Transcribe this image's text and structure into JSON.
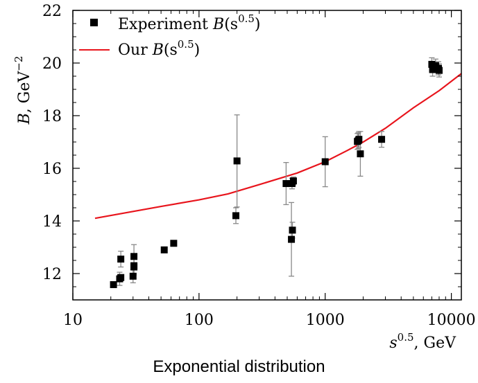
{
  "caption": "Exponential distribution",
  "chart_data": {
    "type": "scatter",
    "xscale": "log",
    "xlim": [
      10,
      12000
    ],
    "ylim": [
      11,
      22
    ],
    "xlabel_base": "s",
    "xlabel_exp": "0.5",
    "xlabel_unit": ", GeV",
    "ylabel_var": "B",
    "ylabel_unit": ", GeV",
    "ylabel_exp": "−2",
    "x_ticks": [
      10,
      100,
      1000,
      10000
    ],
    "x_tick_labels": [
      "10",
      "100",
      "1000",
      "10000"
    ],
    "y_ticks": [
      12,
      14,
      16,
      18,
      20,
      22
    ],
    "y_tick_labels": [
      "12",
      "14",
      "16",
      "18",
      "20",
      "22"
    ],
    "legend": {
      "position": "top-left",
      "experiment_label_text": "Experiment ",
      "experiment_label_var": "B",
      "experiment_label_open": "(s",
      "experiment_label_exp": "0.5",
      "experiment_label_close": ")",
      "model_label_text": "Our ",
      "model_label_var": "B",
      "model_label_open": "(s",
      "model_label_exp": "0.5",
      "model_label_close": ")"
    },
    "colors": {
      "experiment": "#000000",
      "model": "#e8141c",
      "errorbar": "#888888"
    },
    "series": [
      {
        "kind": "points_with_errorbars",
        "x": [
          21,
          23.5,
          24,
          24,
          30,
          30.5,
          30.5,
          30.5,
          53,
          63,
          196,
          200,
          490,
          540,
          546,
          550,
          560,
          1000,
          1800,
          1830,
          1850,
          1900,
          2800,
          7000,
          7100,
          7500,
          7900,
          8000
        ],
        "y": [
          11.58,
          11.8,
          11.85,
          12.55,
          11.9,
          12.25,
          12.3,
          12.65,
          12.9,
          13.15,
          14.2,
          16.28,
          15.42,
          13.3,
          15.42,
          13.65,
          15.52,
          16.25,
          17.02,
          17.05,
          17.1,
          16.55,
          17.1,
          19.95,
          19.75,
          19.9,
          19.8,
          19.72
        ],
        "yerr": [
          0,
          0.25,
          0.1,
          0.3,
          0.25,
          0.3,
          0.3,
          0.45,
          0,
          0,
          0.3,
          1.75,
          0.8,
          1.4,
          0.2,
          0.3,
          0.15,
          0.95,
          0.3,
          0.3,
          0.3,
          0.85,
          0.3,
          0.25,
          0.25,
          0.25,
          0.25,
          0.25
        ]
      },
      {
        "kind": "line",
        "x": [
          15,
          50,
          100,
          170,
          300,
          600,
          1000,
          1500,
          2000,
          3000,
          5000,
          8000,
          12000
        ],
        "y": [
          14.1,
          14.55,
          14.8,
          15.03,
          15.38,
          15.82,
          16.25,
          16.68,
          17.0,
          17.52,
          18.3,
          18.95,
          19.6
        ]
      }
    ]
  }
}
